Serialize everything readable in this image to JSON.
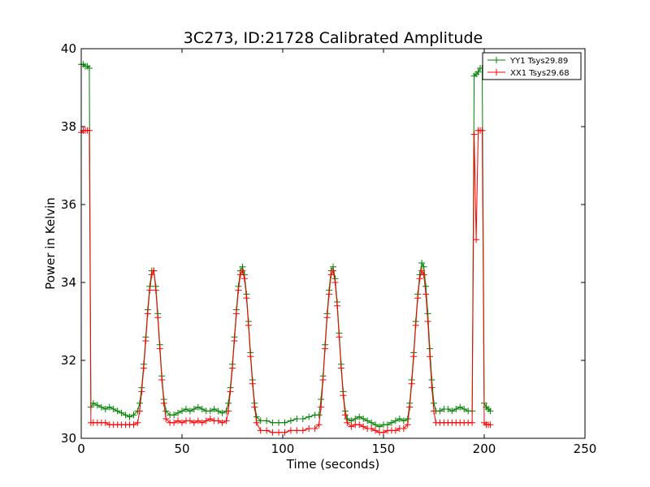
{
  "chart_data": {
    "type": "line",
    "title": "3C273, ID:21728 Calibrated Amplitude",
    "xlabel": "Time (seconds)",
    "ylabel": "Power in Kelvin",
    "xlim": [
      0,
      250
    ],
    "ylim": [
      30,
      40
    ],
    "xticks": [
      "0",
      "50",
      "100",
      "150",
      "200",
      "250"
    ],
    "yticks": [
      "30",
      "32",
      "34",
      "36",
      "38",
      "40"
    ],
    "grid": false,
    "legend": "top-right",
    "marker": "plus",
    "series": [
      {
        "name": "YY1 Tsys29.89",
        "color": "#008000",
        "points": [
          [
            0,
            39.6
          ],
          [
            1,
            39.6
          ],
          [
            2,
            39.55
          ],
          [
            3,
            39.55
          ],
          [
            4,
            39.5
          ],
          [
            4.8,
            30.8
          ],
          [
            6,
            30.9
          ],
          [
            8,
            30.85
          ],
          [
            10,
            30.8
          ],
          [
            12,
            30.75
          ],
          [
            14,
            30.8
          ],
          [
            16,
            30.75
          ],
          [
            18,
            30.7
          ],
          [
            20,
            30.65
          ],
          [
            22,
            30.6
          ],
          [
            24,
            30.55
          ],
          [
            26,
            30.6
          ],
          [
            28,
            30.7
          ],
          [
            29,
            30.9
          ],
          [
            30,
            31.3
          ],
          [
            31,
            31.9
          ],
          [
            32,
            32.6
          ],
          [
            33,
            33.3
          ],
          [
            34,
            33.9
          ],
          [
            35,
            34.3
          ],
          [
            36,
            34.3
          ],
          [
            37,
            33.9
          ],
          [
            38,
            33.2
          ],
          [
            39,
            32.4
          ],
          [
            40,
            31.6
          ],
          [
            41,
            31.0
          ],
          [
            42,
            30.7
          ],
          [
            44,
            30.6
          ],
          [
            46,
            30.6
          ],
          [
            48,
            30.65
          ],
          [
            50,
            30.7
          ],
          [
            52,
            30.75
          ],
          [
            54,
            30.7
          ],
          [
            56,
            30.75
          ],
          [
            58,
            30.8
          ],
          [
            60,
            30.75
          ],
          [
            62,
            30.7
          ],
          [
            64,
            30.7
          ],
          [
            66,
            30.75
          ],
          [
            68,
            30.7
          ],
          [
            70,
            30.65
          ],
          [
            72,
            30.7
          ],
          [
            73,
            30.9
          ],
          [
            74,
            31.3
          ],
          [
            75,
            31.9
          ],
          [
            76,
            32.6
          ],
          [
            77,
            33.3
          ],
          [
            78,
            33.9
          ],
          [
            79,
            34.3
          ],
          [
            80,
            34.4
          ],
          [
            81,
            34.2
          ],
          [
            82,
            33.7
          ],
          [
            83,
            33.0
          ],
          [
            84,
            32.2
          ],
          [
            85,
            31.5
          ],
          [
            86,
            30.9
          ],
          [
            87,
            30.55
          ],
          [
            89,
            30.45
          ],
          [
            92,
            30.45
          ],
          [
            95,
            30.4
          ],
          [
            98,
            30.4
          ],
          [
            101,
            30.4
          ],
          [
            104,
            30.45
          ],
          [
            107,
            30.5
          ],
          [
            110,
            30.5
          ],
          [
            113,
            30.55
          ],
          [
            116,
            30.6
          ],
          [
            118,
            30.6
          ],
          [
            119,
            31.0
          ],
          [
            120,
            31.6
          ],
          [
            121,
            32.4
          ],
          [
            122,
            33.2
          ],
          [
            123,
            33.8
          ],
          [
            124,
            34.3
          ],
          [
            125,
            34.4
          ],
          [
            126,
            34.1
          ],
          [
            127,
            33.5
          ],
          [
            128,
            32.7
          ],
          [
            129,
            31.9
          ],
          [
            130,
            31.2
          ],
          [
            131,
            30.7
          ],
          [
            132,
            30.5
          ],
          [
            134,
            30.45
          ],
          [
            136,
            30.5
          ],
          [
            138,
            30.55
          ],
          [
            140,
            30.5
          ],
          [
            142,
            30.45
          ],
          [
            144,
            30.4
          ],
          [
            146,
            30.35
          ],
          [
            148,
            30.3
          ],
          [
            150,
            30.35
          ],
          [
            152,
            30.35
          ],
          [
            154,
            30.4
          ],
          [
            156,
            30.45
          ],
          [
            158,
            30.5
          ],
          [
            160,
            30.45
          ],
          [
            162,
            30.5
          ],
          [
            163,
            30.9
          ],
          [
            164,
            31.5
          ],
          [
            165,
            32.2
          ],
          [
            166,
            33.0
          ],
          [
            167,
            33.7
          ],
          [
            168,
            34.2
          ],
          [
            169,
            34.5
          ],
          [
            170,
            34.4
          ],
          [
            171,
            33.9
          ],
          [
            172,
            33.2
          ],
          [
            173,
            32.3
          ],
          [
            174,
            31.5
          ],
          [
            175,
            30.9
          ],
          [
            176,
            30.7
          ],
          [
            178,
            30.7
          ],
          [
            180,
            30.75
          ],
          [
            182,
            30.75
          ],
          [
            184,
            30.7
          ],
          [
            186,
            30.75
          ],
          [
            188,
            30.8
          ],
          [
            190,
            30.75
          ],
          [
            192,
            30.7
          ],
          [
            194,
            30.7
          ],
          [
            195,
            39.3
          ],
          [
            196,
            39.35
          ],
          [
            197,
            39.4
          ],
          [
            198,
            39.5
          ],
          [
            199,
            39.5
          ],
          [
            200,
            30.9
          ],
          [
            201,
            30.8
          ],
          [
            202,
            30.75
          ],
          [
            203,
            30.7
          ]
        ]
      },
      {
        "name": "XX1 Tsys29.68",
        "color": "#ff0000",
        "points": [
          [
            0,
            37.85
          ],
          [
            1,
            37.9
          ],
          [
            2,
            37.9
          ],
          [
            3,
            37.9
          ],
          [
            4,
            37.9
          ],
          [
            4.8,
            30.4
          ],
          [
            6,
            30.4
          ],
          [
            8,
            30.4
          ],
          [
            10,
            30.4
          ],
          [
            12,
            30.4
          ],
          [
            14,
            30.35
          ],
          [
            16,
            30.35
          ],
          [
            18,
            30.35
          ],
          [
            20,
            30.35
          ],
          [
            22,
            30.35
          ],
          [
            24,
            30.35
          ],
          [
            26,
            30.35
          ],
          [
            28,
            30.4
          ],
          [
            29,
            30.7
          ],
          [
            30,
            31.2
          ],
          [
            31,
            31.8
          ],
          [
            32,
            32.5
          ],
          [
            33,
            33.2
          ],
          [
            34,
            33.8
          ],
          [
            35,
            34.2
          ],
          [
            36,
            34.3
          ],
          [
            37,
            33.8
          ],
          [
            38,
            33.1
          ],
          [
            39,
            32.3
          ],
          [
            40,
            31.5
          ],
          [
            41,
            30.9
          ],
          [
            42,
            30.5
          ],
          [
            44,
            30.4
          ],
          [
            46,
            30.4
          ],
          [
            48,
            30.45
          ],
          [
            50,
            30.4
          ],
          [
            52,
            30.45
          ],
          [
            54,
            30.45
          ],
          [
            56,
            30.4
          ],
          [
            58,
            30.45
          ],
          [
            60,
            30.4
          ],
          [
            62,
            30.45
          ],
          [
            64,
            30.5
          ],
          [
            66,
            30.45
          ],
          [
            68,
            30.45
          ],
          [
            70,
            30.4
          ],
          [
            72,
            30.45
          ],
          [
            73,
            30.7
          ],
          [
            74,
            31.2
          ],
          [
            75,
            31.8
          ],
          [
            76,
            32.5
          ],
          [
            77,
            33.2
          ],
          [
            78,
            33.8
          ],
          [
            79,
            34.2
          ],
          [
            80,
            34.3
          ],
          [
            81,
            34.1
          ],
          [
            82,
            33.6
          ],
          [
            83,
            32.9
          ],
          [
            84,
            32.1
          ],
          [
            85,
            31.4
          ],
          [
            86,
            30.8
          ],
          [
            87,
            30.4
          ],
          [
            89,
            30.2
          ],
          [
            92,
            30.2
          ],
          [
            95,
            30.15
          ],
          [
            98,
            30.15
          ],
          [
            101,
            30.15
          ],
          [
            104,
            30.2
          ],
          [
            107,
            30.2
          ],
          [
            110,
            30.2
          ],
          [
            113,
            30.25
          ],
          [
            116,
            30.25
          ],
          [
            118,
            30.35
          ],
          [
            119,
            30.8
          ],
          [
            120,
            31.5
          ],
          [
            121,
            32.3
          ],
          [
            122,
            33.1
          ],
          [
            123,
            33.7
          ],
          [
            124,
            34.2
          ],
          [
            125,
            34.3
          ],
          [
            126,
            34.0
          ],
          [
            127,
            33.4
          ],
          [
            128,
            32.6
          ],
          [
            129,
            31.8
          ],
          [
            130,
            31.1
          ],
          [
            131,
            30.6
          ],
          [
            132,
            30.4
          ],
          [
            134,
            30.3
          ],
          [
            136,
            30.35
          ],
          [
            138,
            30.35
          ],
          [
            140,
            30.3
          ],
          [
            142,
            30.25
          ],
          [
            144,
            30.25
          ],
          [
            146,
            30.2
          ],
          [
            148,
            30.15
          ],
          [
            150,
            30.15
          ],
          [
            152,
            30.2
          ],
          [
            154,
            30.2
          ],
          [
            156,
            30.2
          ],
          [
            158,
            30.25
          ],
          [
            160,
            30.25
          ],
          [
            162,
            30.35
          ],
          [
            163,
            30.8
          ],
          [
            164,
            31.4
          ],
          [
            165,
            32.1
          ],
          [
            166,
            32.9
          ],
          [
            167,
            33.6
          ],
          [
            168,
            34.1
          ],
          [
            169,
            34.3
          ],
          [
            170,
            34.2
          ],
          [
            171,
            33.7
          ],
          [
            172,
            33.0
          ],
          [
            173,
            32.1
          ],
          [
            174,
            31.3
          ],
          [
            175,
            30.7
          ],
          [
            176,
            30.4
          ],
          [
            178,
            30.4
          ],
          [
            180,
            30.4
          ],
          [
            182,
            30.4
          ],
          [
            184,
            30.4
          ],
          [
            186,
            30.4
          ],
          [
            188,
            30.4
          ],
          [
            190,
            30.4
          ],
          [
            192,
            30.4
          ],
          [
            194,
            30.4
          ],
          [
            195,
            37.8
          ],
          [
            196,
            35.1
          ],
          [
            197,
            37.9
          ],
          [
            198,
            37.9
          ],
          [
            199,
            37.9
          ],
          [
            200,
            30.4
          ],
          [
            201,
            30.35
          ],
          [
            202,
            30.35
          ],
          [
            203,
            30.35
          ]
        ]
      }
    ]
  }
}
